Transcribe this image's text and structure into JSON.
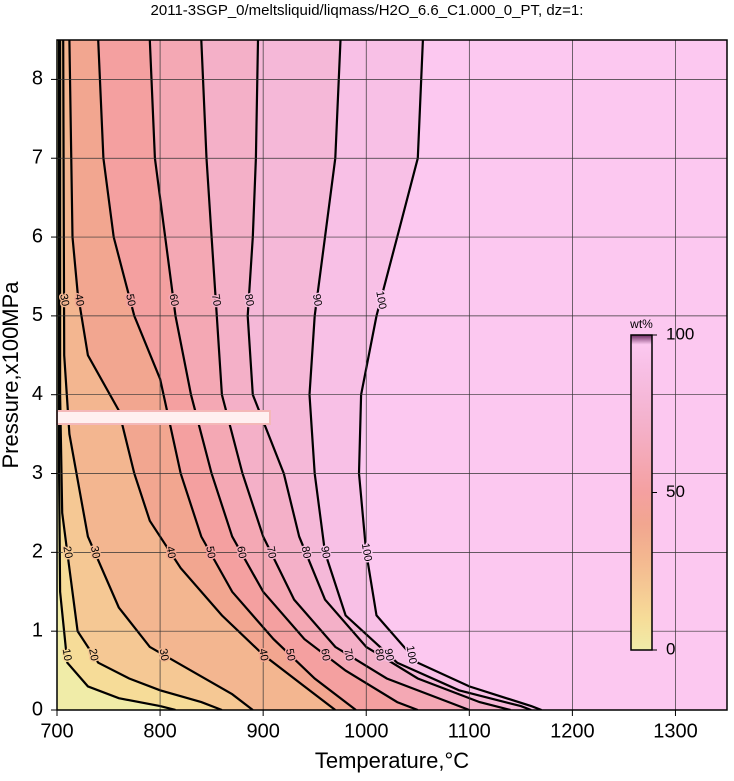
{
  "chart_data": {
    "type": "contour",
    "title": "2011-3SGP_0/meltsliquid/liqmass/H2O_6.6_C1.000_0_PT, dz=1:",
    "x_label": "Temperature,°C",
    "y_label": "Pressure,x100MPa",
    "xlim": [
      700,
      1350
    ],
    "ylim": [
      0,
      8.5
    ],
    "xticks": [
      700,
      800,
      900,
      1000,
      1100,
      1200,
      1300
    ],
    "yticks": [
      0,
      1,
      2,
      3,
      4,
      5,
      6,
      7,
      8
    ],
    "grid": true,
    "base_color": "#f0eca8",
    "contours": [
      {
        "level": 10,
        "color": "#f6dc98",
        "x": [
          702,
          702,
          703,
          710,
          730,
          760,
          800,
          815
        ],
        "y": [
          8.5,
          3,
          1.5,
          0.6,
          0.3,
          0.15,
          0.05,
          0
        ]
      },
      {
        "level": 20,
        "color": "#f5c894",
        "x": [
          703,
          703,
          705,
          710,
          720,
          740,
          770,
          800,
          840,
          860
        ],
        "y": [
          8.5,
          4,
          2.5,
          2,
          1,
          0.6,
          0.4,
          0.25,
          0.1,
          0
        ]
      },
      {
        "level": 30,
        "color": "#f3b690",
        "x": [
          706,
          707,
          712,
          730,
          760,
          790,
          830,
          870,
          890
        ],
        "y": [
          8.5,
          4.5,
          3.5,
          2.2,
          1.3,
          0.8,
          0.5,
          0.2,
          0
        ]
      },
      {
        "level": 40,
        "color": "#f2a690",
        "x": [
          712,
          715,
          720,
          730,
          760,
          775,
          790,
          820,
          860,
          900,
          940,
          970
        ],
        "y": [
          8.5,
          6,
          5.3,
          4.5,
          3.8,
          3,
          2.4,
          1.8,
          1.2,
          0.7,
          0.3,
          0
        ]
      },
      {
        "level": 50,
        "color": "#f4a0a0",
        "x": [
          740,
          745,
          755,
          775,
          800,
          820,
          840,
          870,
          910,
          950,
          990
        ],
        "y": [
          8.5,
          7,
          6,
          5,
          4.2,
          3,
          2.2,
          1.5,
          0.9,
          0.4,
          0
        ]
      },
      {
        "level": 60,
        "color": "#f4a8b4",
        "x": [
          790,
          795,
          805,
          815,
          830,
          850,
          870,
          900,
          940,
          980,
          1030,
          1050
        ],
        "y": [
          8.5,
          7,
          6,
          5,
          4,
          3,
          2.2,
          1.5,
          0.9,
          0.5,
          0.1,
          0
        ]
      },
      {
        "level": 70,
        "color": "#f4b0c8",
        "x": [
          840,
          845,
          850,
          855,
          860,
          880,
          900,
          930,
          970,
          1020,
          1080,
          1100
        ],
        "y": [
          8.5,
          7,
          6,
          5,
          4,
          3,
          2.2,
          1.4,
          0.8,
          0.4,
          0.1,
          0
        ]
      },
      {
        "level": 80,
        "color": "#f5b8d8",
        "x": [
          895,
          893,
          890,
          885,
          890,
          920,
          935,
          960,
          1000,
          1050,
          1110,
          1140
        ],
        "y": [
          8.5,
          7,
          6,
          5,
          4,
          3,
          2.2,
          1.4,
          0.8,
          0.4,
          0.1,
          0
        ]
      },
      {
        "level": 90,
        "color": "#f8c0e6",
        "x": [
          975,
          970,
          960,
          950,
          945,
          950,
          960,
          980,
          1030,
          1090,
          1150,
          1160
        ],
        "y": [
          8.5,
          7,
          6,
          5,
          4,
          3,
          2,
          1.2,
          0.6,
          0.25,
          0.05,
          0
        ]
      },
      {
        "level": 100,
        "color": "#fcc8f0",
        "x": [
          1055,
          1050,
          1030,
          1010,
          995,
          993,
          1000,
          1010,
          1050,
          1100,
          1160,
          1170
        ],
        "y": [
          8.5,
          7,
          6,
          5,
          4,
          3,
          2,
          1.2,
          0.6,
          0.3,
          0.05,
          0
        ]
      }
    ],
    "colorbar": {
      "label": "wt%",
      "lim": [
        0,
        100
      ],
      "ticks": [
        0,
        50,
        100
      ],
      "top_color": "#6a2a60"
    }
  }
}
